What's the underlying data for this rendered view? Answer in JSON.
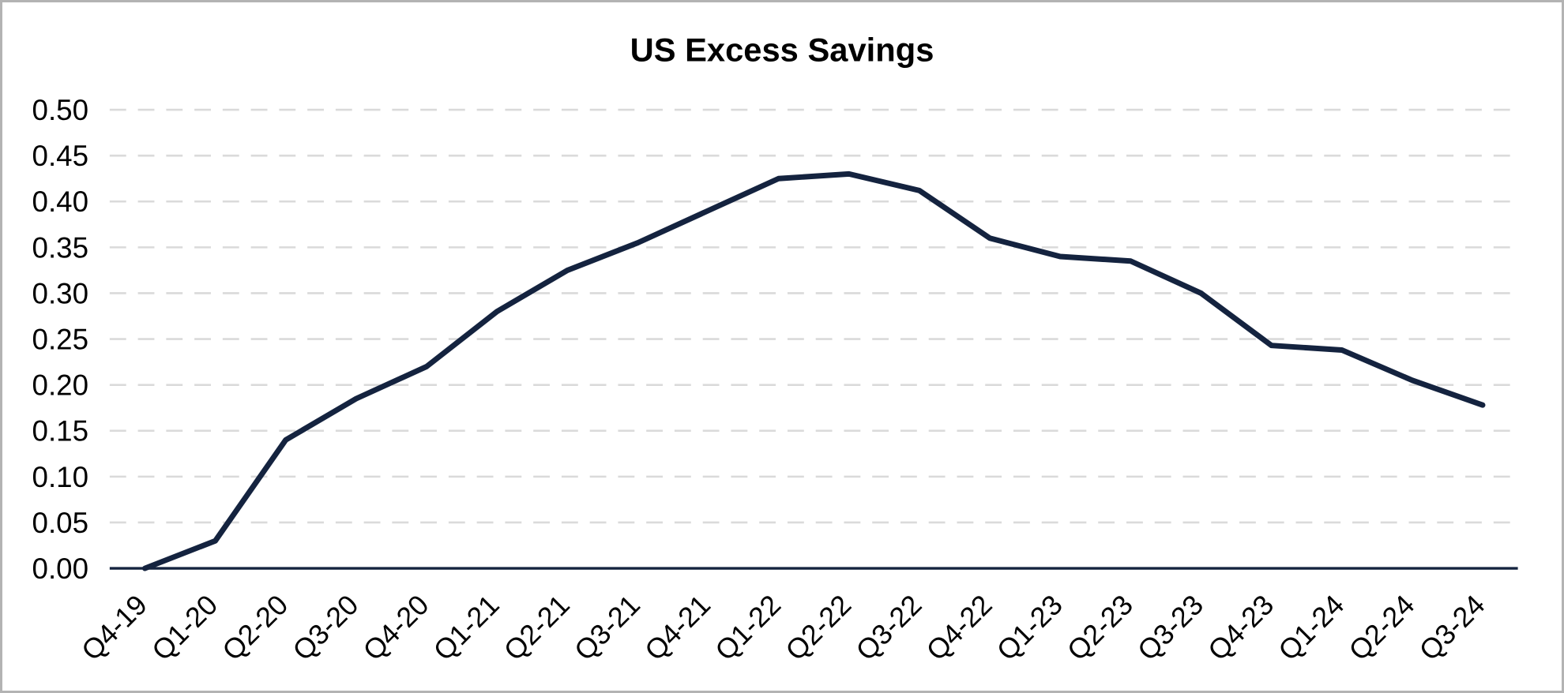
{
  "chart_data": {
    "type": "line",
    "title": "US Excess Savings",
    "categories": [
      "Q4-19",
      "Q1-20",
      "Q2-20",
      "Q3-20",
      "Q4-20",
      "Q1-21",
      "Q2-21",
      "Q3-21",
      "Q4-21",
      "Q1-22",
      "Q2-22",
      "Q3-22",
      "Q4-22",
      "Q1-23",
      "Q2-23",
      "Q3-23",
      "Q4-23",
      "Q1-24",
      "Q2-24",
      "Q3-24"
    ],
    "series": [
      {
        "name": "US Excess Savings",
        "values": [
          0.0,
          0.03,
          0.14,
          0.185,
          0.22,
          0.28,
          0.325,
          0.355,
          0.39,
          0.425,
          0.43,
          0.412,
          0.36,
          0.34,
          0.335,
          0.3,
          0.243,
          0.238,
          0.205,
          0.178
        ]
      }
    ],
    "xlabel": "",
    "ylabel": "",
    "ylim": [
      0,
      0.5
    ],
    "y_ticks": [
      "0.00",
      "0.05",
      "0.10",
      "0.15",
      "0.20",
      "0.25",
      "0.30",
      "0.35",
      "0.40",
      "0.45",
      "0.50"
    ],
    "x_tick_rotation_degrees": 45,
    "grid": "horizontal-dashed",
    "legend": "none",
    "colors": {
      "line": "#14233F",
      "axis": "#14233F",
      "gridline": "#DADADA",
      "text": "#000000",
      "background": "#FFFFFF",
      "frame_border": "#B3B3B3"
    }
  }
}
